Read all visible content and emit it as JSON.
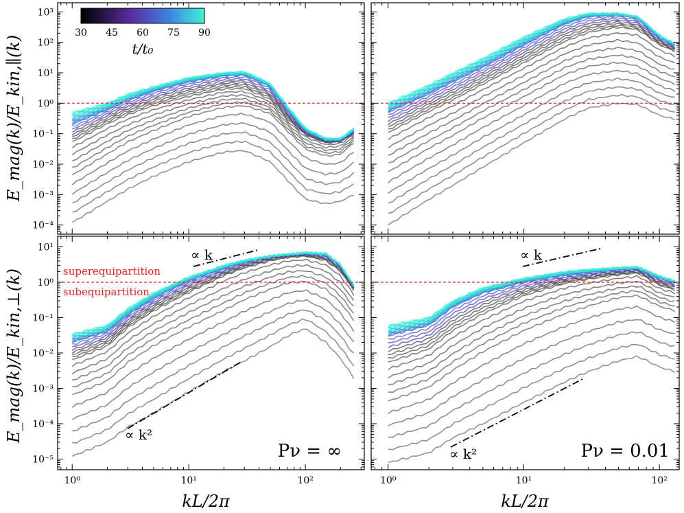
{
  "chart_data": [
    {
      "type": "line",
      "panel": "top-left",
      "ylabel": "E_mag(k)/E_kin,∥(k)",
      "yscale": "log",
      "xscale": "log",
      "ylim": [
        5e-05,
        2000
      ],
      "xlim": [
        0.75,
        320
      ],
      "x_ticks": [],
      "y_ticks": [
        "10⁻⁴",
        "10⁻³",
        "10⁻²",
        "10⁻¹",
        "10⁰",
        "10¹",
        "10²",
        "10³"
      ],
      "reference_line": {
        "y": 1,
        "color": "#e02020",
        "style": "dashed"
      },
      "series": [
        {
          "t": 30,
          "x": [
            1,
            2,
            3,
            5,
            10,
            20,
            30,
            50,
            70,
            100,
            150,
            200,
            260
          ],
          "y": [
            0.00012,
            0.0006,
            0.0015,
            0.004,
            0.012,
            0.025,
            0.028,
            0.012,
            0.003,
            0.0007,
            0.0005,
            0.0006,
            0.001
          ]
        },
        {
          "t": 40,
          "x": [
            1,
            2,
            3,
            5,
            10,
            20,
            30,
            50,
            70,
            100,
            150,
            200,
            260
          ],
          "y": [
            0.004,
            0.02,
            0.05,
            0.12,
            0.35,
            0.7,
            0.8,
            0.45,
            0.12,
            0.03,
            0.018,
            0.02,
            0.05
          ]
        },
        {
          "t": 50,
          "x": [
            1,
            2,
            3,
            5,
            10,
            20,
            30,
            50,
            70,
            100,
            150,
            200,
            260
          ],
          "y": [
            0.05,
            0.2,
            0.4,
            0.8,
            1.6,
            2.8,
            2.9,
            1.3,
            0.3,
            0.09,
            0.05,
            0.055,
            0.1
          ]
        },
        {
          "t": 65,
          "x": [
            1,
            2,
            3,
            5,
            10,
            20,
            30,
            50,
            70,
            100,
            150,
            200,
            260
          ],
          "y": [
            0.2,
            0.6,
            1.2,
            2.5,
            5,
            8,
            8.5,
            3.5,
            0.6,
            0.12,
            0.06,
            0.06,
            0.12
          ]
        },
        {
          "t": 90,
          "x": [
            1,
            2,
            3,
            5,
            10,
            20,
            30,
            50,
            70,
            100,
            150,
            200,
            260
          ],
          "y": [
            0.5,
            1.0,
            2.0,
            3.5,
            7,
            10,
            11,
            4.5,
            0.8,
            0.15,
            0.07,
            0.07,
            0.15
          ]
        }
      ],
      "colorbar": {
        "label": "t/t₀",
        "ticks": [
          "30",
          "45",
          "60",
          "75",
          "90"
        ],
        "range": [
          30,
          90
        ],
        "colors": [
          "#000000",
          "#5b2c9e",
          "#3f7fe0",
          "#2fd4d4",
          "#40f0d8"
        ]
      }
    },
    {
      "type": "line",
      "panel": "top-right",
      "yscale": "log",
      "xscale": "log",
      "ylim": [
        5e-05,
        2000
      ],
      "xlim": [
        0.75,
        140
      ],
      "x_ticks": [],
      "y_ticks": [],
      "reference_line": {
        "y": 1,
        "color": "#e02020",
        "style": "dashed"
      },
      "series": [
        {
          "t": 30,
          "x": [
            1,
            2,
            3,
            5,
            10,
            20,
            30,
            50,
            70,
            100,
            130
          ],
          "y": [
            0.0001,
            0.0007,
            0.002,
            0.008,
            0.05,
            0.3,
            0.7,
            1.0,
            0.9,
            0.4,
            0.3
          ]
        },
        {
          "t": 40,
          "x": [
            1,
            2,
            3,
            5,
            10,
            20,
            30,
            50,
            70,
            100,
            130
          ],
          "y": [
            0.005,
            0.03,
            0.08,
            0.3,
            1.5,
            8,
            15,
            20,
            15,
            6,
            4
          ]
        },
        {
          "t": 50,
          "x": [
            1,
            2,
            3,
            5,
            10,
            20,
            30,
            50,
            70,
            100,
            130
          ],
          "y": [
            0.1,
            0.5,
            1.2,
            4,
            20,
            100,
            200,
            300,
            250,
            80,
            50
          ]
        },
        {
          "t": 65,
          "x": [
            1,
            2,
            3,
            5,
            10,
            20,
            30,
            50,
            70,
            100,
            130
          ],
          "y": [
            0.5,
            2,
            5,
            15,
            80,
            400,
            700,
            800,
            600,
            150,
            80
          ]
        },
        {
          "t": 90,
          "x": [
            1,
            2,
            3,
            5,
            10,
            20,
            30,
            50,
            70,
            100,
            130
          ],
          "y": [
            1.0,
            4,
            10,
            30,
            150,
            600,
            900,
            900,
            700,
            170,
            90
          ]
        }
      ]
    },
    {
      "type": "line",
      "panel": "bottom-left",
      "ylabel": "E_mag(k)/E_kin,⊥(k)",
      "xlabel": "kL/2π",
      "yscale": "log",
      "xscale": "log",
      "ylim": [
        5e-06,
        20
      ],
      "xlim": [
        0.75,
        320
      ],
      "x_ticks": [
        "10⁰",
        "10¹",
        "10²"
      ],
      "y_ticks": [
        "10⁻⁵",
        "10⁻⁴",
        "10⁻³",
        "10⁻²",
        "10⁻¹",
        "10⁰",
        "10¹"
      ],
      "reference_line": {
        "y": 1,
        "color": "#e02020",
        "style": "dashed"
      },
      "annotations": {
        "above": "superequipartition",
        "below": "subequipartition",
        "slope1": "∝ k",
        "slope2": "∝ k²",
        "param": "Pν = ∞"
      },
      "series": [
        {
          "t": 30,
          "x": [
            1,
            2,
            3,
            5,
            10,
            20,
            30,
            50,
            70,
            100,
            150,
            200,
            260
          ],
          "y": [
            1.2e-05,
            3e-05,
            8e-05,
            0.0002,
            0.0008,
            0.003,
            0.006,
            0.015,
            0.03,
            0.05,
            0.02,
            0.007,
            0.002
          ]
        },
        {
          "t": 40,
          "x": [
            1,
            2,
            3,
            5,
            10,
            20,
            30,
            50,
            70,
            100,
            150,
            200,
            260
          ],
          "y": [
            0.0006,
            0.0015,
            0.005,
            0.015,
            0.05,
            0.15,
            0.3,
            0.6,
            0.9,
            1.0,
            0.6,
            0.25,
            0.08
          ]
        },
        {
          "t": 50,
          "x": [
            1,
            2,
            3,
            5,
            10,
            20,
            30,
            50,
            70,
            100,
            150,
            200,
            260
          ],
          "y": [
            0.006,
            0.015,
            0.05,
            0.15,
            0.5,
            1.5,
            2.5,
            4,
            5,
            5.5,
            4,
            2,
            0.6
          ]
        },
        {
          "t": 65,
          "x": [
            1,
            2,
            3,
            5,
            10,
            20,
            30,
            50,
            70,
            100,
            150,
            200,
            260
          ],
          "y": [
            0.02,
            0.04,
            0.12,
            0.35,
            1.1,
            2.5,
            3.8,
            5.5,
            6,
            6.5,
            6,
            3,
            0.8
          ]
        },
        {
          "t": 90,
          "x": [
            1,
            2,
            3,
            5,
            10,
            20,
            30,
            50,
            70,
            100,
            150,
            200,
            260
          ],
          "y": [
            0.035,
            0.06,
            0.18,
            0.5,
            1.4,
            3,
            4.2,
            5.5,
            6.2,
            7,
            6.5,
            3.2,
            0.8
          ]
        }
      ]
    },
    {
      "type": "line",
      "panel": "bottom-right",
      "xlabel": "kL/2π",
      "yscale": "log",
      "xscale": "log",
      "ylim": [
        5e-06,
        20
      ],
      "xlim": [
        0.75,
        140
      ],
      "x_ticks": [
        "10⁰",
        "10¹",
        "10²"
      ],
      "y_ticks": [],
      "reference_line": {
        "y": 1,
        "color": "#e02020",
        "style": "dashed"
      },
      "annotations": {
        "slope1": "∝ k",
        "slope2": "∝ k²",
        "param": "Pν = 0.01"
      },
      "series": [
        {
          "t": 30,
          "x": [
            1,
            2,
            3,
            5,
            10,
            20,
            30,
            50,
            70,
            100,
            130
          ],
          "y": [
            8e-06,
            1.5e-05,
            4e-05,
            0.0001,
            0.0004,
            0.0015,
            0.003,
            0.006,
            0.008,
            0.004,
            0.003
          ]
        },
        {
          "t": 40,
          "x": [
            1,
            2,
            3,
            5,
            10,
            20,
            30,
            50,
            70,
            100,
            130
          ],
          "y": [
            0.0004,
            0.001,
            0.003,
            0.01,
            0.04,
            0.12,
            0.2,
            0.35,
            0.4,
            0.2,
            0.15
          ]
        },
        {
          "t": 50,
          "x": [
            1,
            2,
            3,
            5,
            10,
            20,
            30,
            50,
            70,
            100,
            130
          ],
          "y": [
            0.005,
            0.012,
            0.04,
            0.12,
            0.4,
            0.9,
            1.2,
            1.6,
            1.8,
            0.8,
            0.6
          ]
        },
        {
          "t": 65,
          "x": [
            1,
            2,
            3,
            5,
            10,
            20,
            30,
            50,
            70,
            100,
            130
          ],
          "y": [
            0.03,
            0.06,
            0.2,
            0.5,
            1.0,
            1.6,
            1.9,
            2.3,
            2.5,
            1.3,
            1.0
          ]
        },
        {
          "t": 90,
          "x": [
            1,
            2,
            3,
            5,
            10,
            20,
            30,
            50,
            70,
            100,
            130
          ],
          "y": [
            0.06,
            0.1,
            0.3,
            0.7,
            1.3,
            2.0,
            2.3,
            2.6,
            2.7,
            1.5,
            1.1
          ]
        }
      ]
    }
  ]
}
